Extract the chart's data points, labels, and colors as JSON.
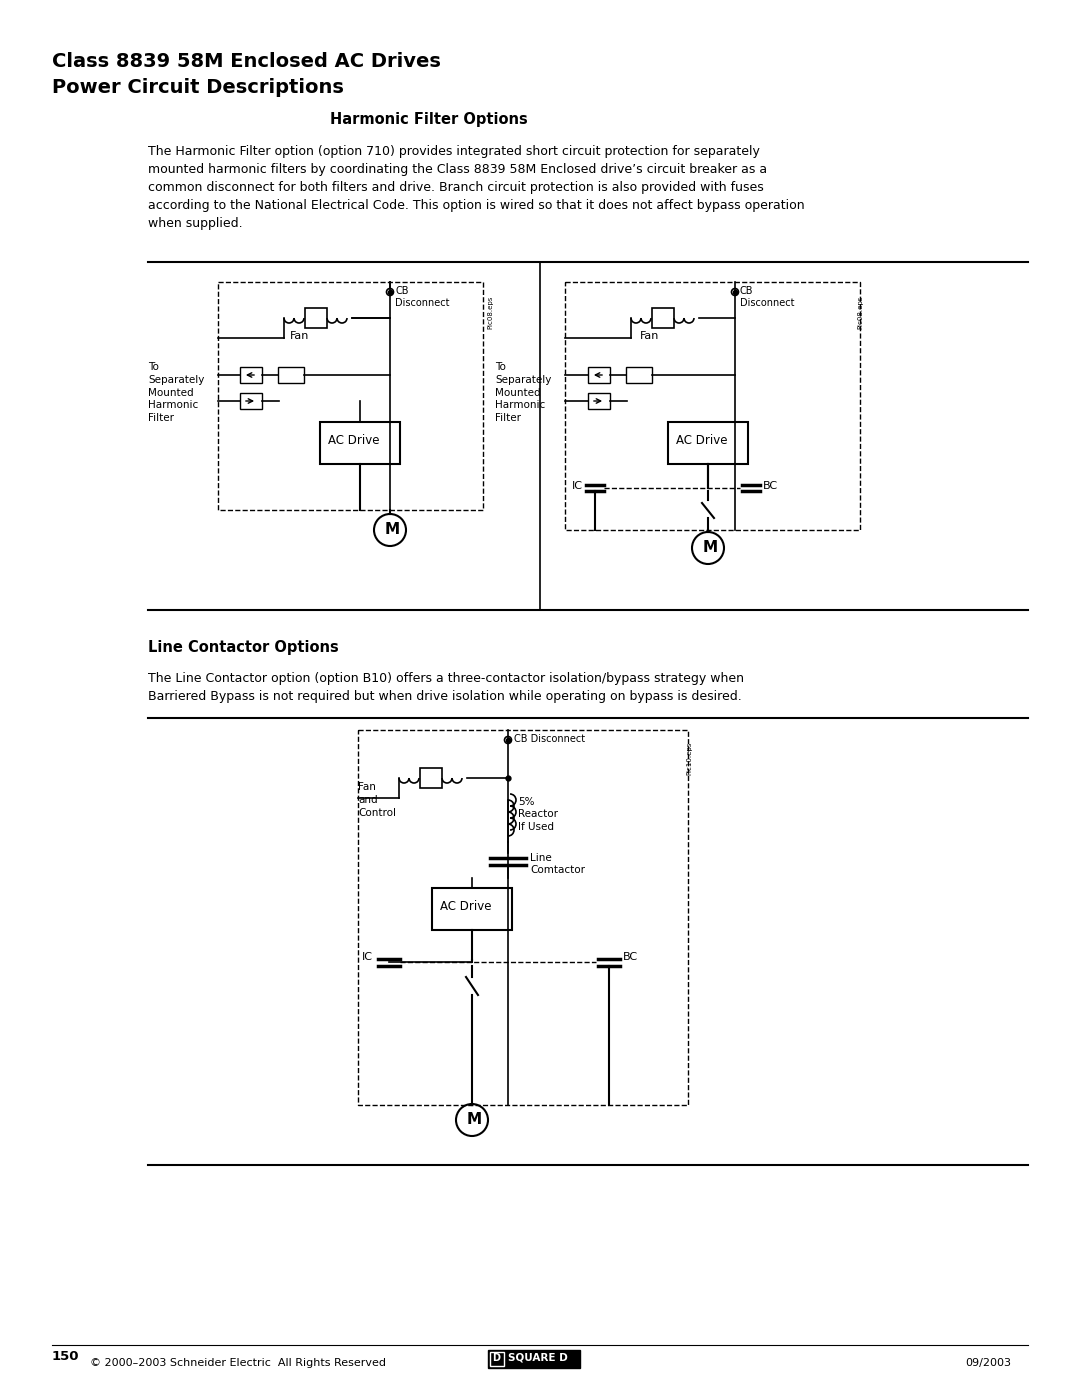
{
  "title_line1": "Class 8839 58M Enclosed AC Drives",
  "title_line2": "Power Circuit Descriptions",
  "section1_heading": "Harmonic Filter Options",
  "section1_body": "The Harmonic Filter option (option 710) provides integrated short circuit protection for separately\nmounted harmonic filters by coordinating the Class 8839 58M Enclosed drive’s circuit breaker as a\ncommon disconnect for both filters and drive. Branch circuit protection is also provided with fuses\naccording to the National Electrical Code. This option is wired so that it does not affect bypass operation\nwhen supplied.",
  "section2_heading": "Line Contactor Options",
  "section2_body": "The Line Contactor option (option B10) offers a three-contactor isolation/bypass strategy when\nBarriered Bypass is not required but when drive isolation while operating on bypass is desired.",
  "footer_left": "© 2000–2003 Schneider Electric  All Rights Reserved",
  "footer_center": "SQUARE D",
  "footer_right": "09/2003",
  "page_number": "150",
  "bg_color": "#ffffff",
  "text_color": "#000000"
}
